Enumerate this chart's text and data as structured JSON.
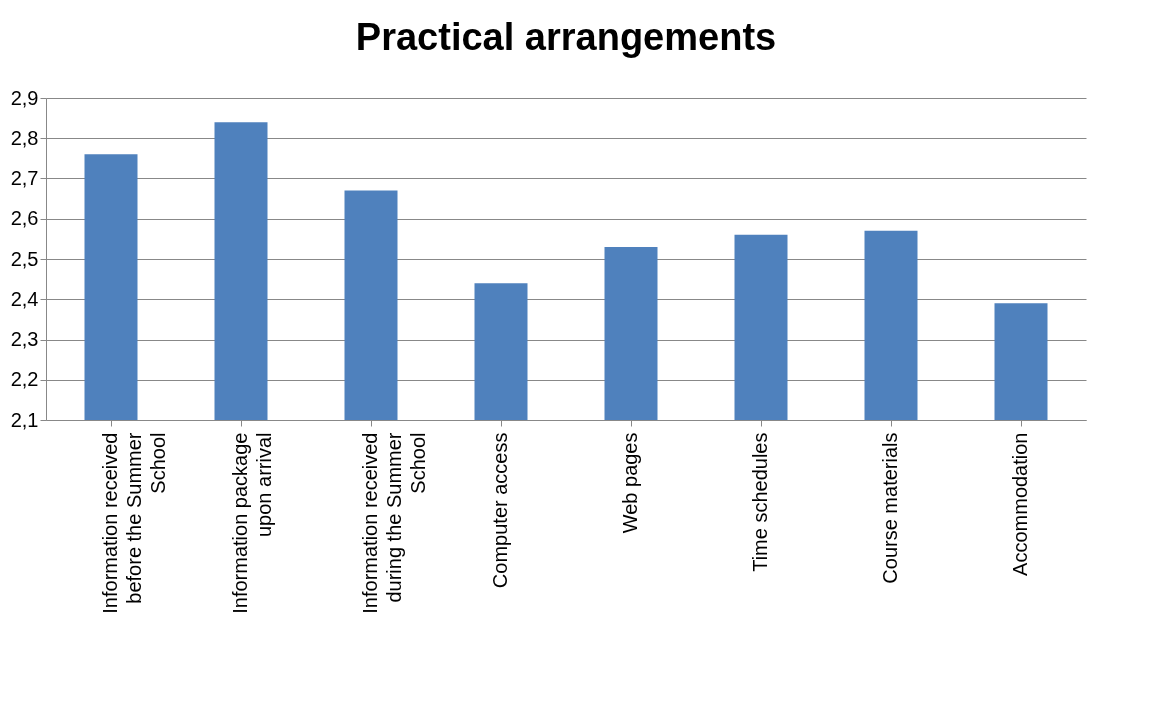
{
  "chart_data": {
    "type": "bar",
    "title": "Practical arrangements",
    "categories": [
      "Information received before the Summer School",
      "Information package upon arrival",
      "Information received during the Summer School",
      "Computer access",
      "Web pages",
      "Time schedules",
      "Course materials",
      "Accommodation"
    ],
    "values": [
      2.76,
      2.84,
      2.67,
      2.44,
      2.53,
      2.56,
      2.57,
      2.39
    ],
    "color": "#4f81bd",
    "ylim": [
      2.1,
      2.9
    ],
    "yticks": [
      {
        "value": 2.1,
        "label": "2,1"
      },
      {
        "value": 2.2,
        "label": "2,2"
      },
      {
        "value": 2.3,
        "label": "2,3"
      },
      {
        "value": 2.4,
        "label": "2,4"
      },
      {
        "value": 2.5,
        "label": "2,5"
      },
      {
        "value": 2.6,
        "label": "2,6"
      },
      {
        "value": 2.7,
        "label": "2,7"
      },
      {
        "value": 2.8,
        "label": "2,8"
      },
      {
        "value": 2.9,
        "label": "2,9"
      }
    ],
    "grid": "y",
    "legend": false
  }
}
